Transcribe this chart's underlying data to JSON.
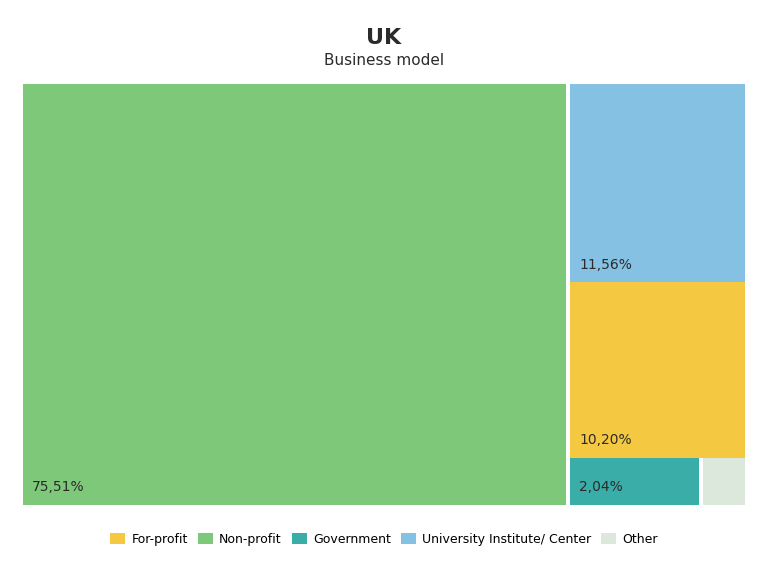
{
  "title": "UK",
  "subtitle": "Business model",
  "categories": [
    "Non-profit",
    "University Institute/ Center",
    "For-profit",
    "Government",
    "Other"
  ],
  "values": [
    75.51,
    11.56,
    10.2,
    2.04,
    0.69
  ],
  "value_labels": [
    "75,51%",
    "11,56%",
    "10,20%",
    "2,04%",
    ""
  ],
  "colors": [
    "#7ec87a",
    "#85c1e2",
    "#f5c842",
    "#3aada8",
    "#dce8dc"
  ],
  "legend_labels": [
    "For-profit",
    "Non-profit",
    "Government",
    "University Institute/ Center",
    "Other"
  ],
  "legend_colors": [
    "#f5c842",
    "#7ec87a",
    "#3aada8",
    "#85c1e2",
    "#dce8dc"
  ],
  "bg_color": "#ffffff",
  "label_color": "#2b2b2b",
  "label_fontsize": 10,
  "title_fontsize": 16,
  "subtitle_fontsize": 11
}
